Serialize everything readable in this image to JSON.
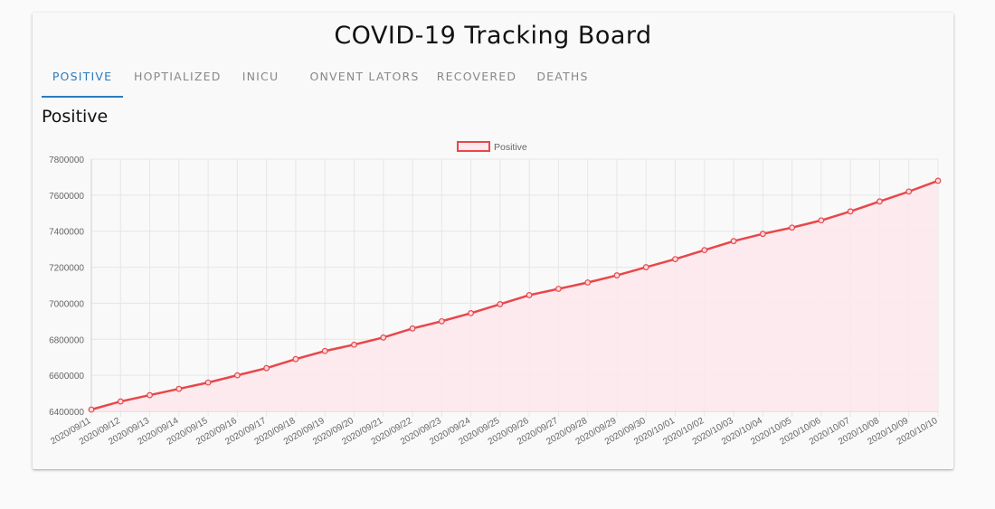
{
  "header": {
    "title": "COVID-19 Tracking Board"
  },
  "tabs": [
    {
      "label": "POSITIVE",
      "active": true
    },
    {
      "label": "HOPTIALIZED",
      "active": false
    },
    {
      "label": "INICU",
      "active": false
    },
    {
      "label": "ONVENT LATORS",
      "active": false
    },
    {
      "label": "RECOVERED",
      "active": false
    },
    {
      "label": "DEATHS",
      "active": false
    }
  ],
  "section": {
    "title": "Positive"
  },
  "colors": {
    "accent": "#2b7bbd",
    "series_line": "#e8474a",
    "series_fill": "#fde8ec",
    "grid": "#e6e6e6"
  },
  "chart_data": {
    "type": "area",
    "legend": {
      "position": "top-center"
    },
    "grid": true,
    "ylim": [
      6400000,
      7800000
    ],
    "yticks": [
      "7800000",
      "7600000",
      "7400000",
      "7200000",
      "7000000",
      "6800000",
      "6600000",
      "6400000"
    ],
    "x": [
      "2020/09/11",
      "2020/09/12",
      "2020/09/13",
      "2020/09/14",
      "2020/09/15",
      "2020/09/16",
      "2020/09/17",
      "2020/09/18",
      "2020/09/19",
      "2020/09/20",
      "2020/09/21",
      "2020/09/22",
      "2020/09/23",
      "2020/09/24",
      "2020/09/25",
      "2020/09/26",
      "2020/09/27",
      "2020/09/28",
      "2020/09/29",
      "2020/09/30",
      "2020/10/01",
      "2020/10/02",
      "2020/10/03",
      "2020/10/04",
      "2020/10/05",
      "2020/10/06",
      "2020/10/07",
      "2020/10/08",
      "2020/10/09",
      "2020/10/10"
    ],
    "series": [
      {
        "name": "Positive",
        "values": [
          6410000,
          6455000,
          6490000,
          6525000,
          6560000,
          6600000,
          6640000,
          6690000,
          6735000,
          6770000,
          6810000,
          6860000,
          6900000,
          6945000,
          6995000,
          7045000,
          7080000,
          7115000,
          7155000,
          7200000,
          7245000,
          7295000,
          7345000,
          7385000,
          7420000,
          7460000,
          7510000,
          7565000,
          7620000,
          7680000
        ]
      }
    ]
  }
}
